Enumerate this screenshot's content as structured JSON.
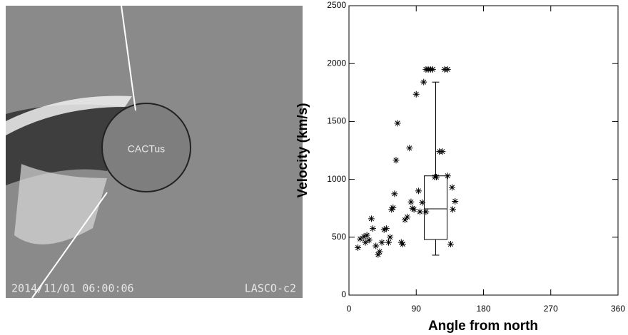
{
  "image": {
    "label": "CACTus",
    "timestamp": "2014/11/01 06:00:06",
    "instrument": "LASCO-c2"
  },
  "chart_data": {
    "type": "scatter",
    "xlabel": "Angle from north",
    "ylabel": "Velocity (km/s)",
    "xlim": [
      0,
      360
    ],
    "xticks": [
      0,
      90,
      180,
      270,
      360
    ],
    "ylim": [
      0,
      2500
    ],
    "yticks": [
      0,
      500,
      1000,
      1500,
      2000,
      2500
    ],
    "color": "#000000",
    "x": [
      12,
      15,
      20,
      24,
      27,
      22,
      30,
      32,
      36,
      39,
      41,
      44,
      47,
      50,
      53,
      55,
      57,
      59,
      61,
      63,
      65,
      70,
      72,
      75,
      78,
      81,
      83,
      85,
      87,
      90,
      93,
      95,
      98,
      100,
      103,
      103,
      106,
      109,
      112,
      115,
      117,
      121,
      125,
      128,
      132,
      132,
      136,
      138,
      139,
      142
    ],
    "values": [
      410,
      485,
      505,
      517,
      475,
      455,
      660,
      575,
      425,
      350,
      375,
      455,
      565,
      575,
      455,
      500,
      740,
      755,
      875,
      1165,
      1485,
      455,
      440,
      650,
      675,
      1270,
      805,
      750,
      740,
      1735,
      900,
      720,
      800,
      1840,
      720,
      1950,
      1950,
      1950,
      1950,
      1020,
      1020,
      1240,
      1240,
      1950,
      1950,
      1030,
      440,
      930,
      740,
      810
    ],
    "box": {
      "x": 116,
      "whisker_low": 345,
      "q1": 480,
      "median": 745,
      "q3": 1030,
      "whisker_high": 1840
    }
  }
}
